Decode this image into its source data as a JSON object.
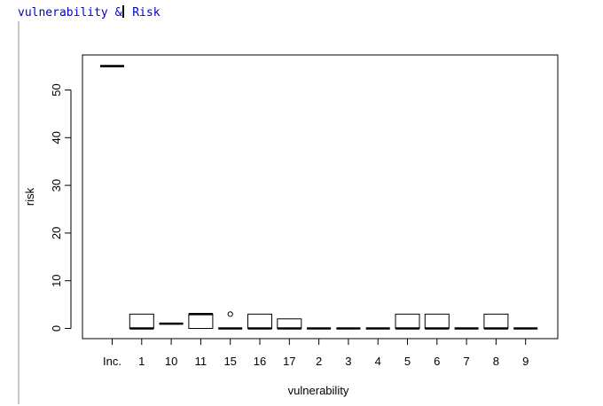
{
  "console": {
    "prefix": "vulnerability &",
    "suffix": " Risk"
  },
  "chart_data": {
    "type": "boxplot",
    "title": "",
    "xlabel": "vulnerability",
    "ylabel": "risk",
    "ylim": [
      -2,
      57
    ],
    "yticks": [
      0,
      10,
      20,
      30,
      40,
      50
    ],
    "categories": [
      "Inc.",
      "1",
      "10",
      "11",
      "15",
      "16",
      "17",
      "2",
      "3",
      "4",
      "5",
      "6",
      "7",
      "8",
      "9"
    ],
    "boxes": [
      {
        "category": "Inc.",
        "min": 55,
        "q1": 55,
        "median": 55,
        "q3": 55,
        "max": 55,
        "outliers": []
      },
      {
        "category": "1",
        "min": 0,
        "q1": 0,
        "median": 0,
        "q3": 3,
        "max": 3,
        "outliers": []
      },
      {
        "category": "10",
        "min": 1,
        "q1": 1,
        "median": 1,
        "q3": 1,
        "max": 1,
        "outliers": []
      },
      {
        "category": "11",
        "min": 0,
        "q1": 0,
        "median": 3,
        "q3": 3,
        "max": 3,
        "outliers": []
      },
      {
        "category": "15",
        "min": 0,
        "q1": 0,
        "median": 0,
        "q3": 0,
        "max": 0,
        "outliers": [
          3
        ]
      },
      {
        "category": "16",
        "min": 0,
        "q1": 0,
        "median": 0,
        "q3": 3,
        "max": 3,
        "outliers": []
      },
      {
        "category": "17",
        "min": 0,
        "q1": 0,
        "median": 0,
        "q3": 2,
        "max": 2,
        "outliers": []
      },
      {
        "category": "2",
        "min": 0,
        "q1": 0,
        "median": 0,
        "q3": 0,
        "max": 0,
        "outliers": []
      },
      {
        "category": "3",
        "min": 0,
        "q1": 0,
        "median": 0,
        "q3": 0,
        "max": 0,
        "outliers": []
      },
      {
        "category": "4",
        "min": 0,
        "q1": 0,
        "median": 0,
        "q3": 0,
        "max": 0,
        "outliers": []
      },
      {
        "category": "5",
        "min": 0,
        "q1": 0,
        "median": 0,
        "q3": 3,
        "max": 3,
        "outliers": []
      },
      {
        "category": "6",
        "min": 0,
        "q1": 0,
        "median": 0,
        "q3": 3,
        "max": 3,
        "outliers": []
      },
      {
        "category": "7",
        "min": 0,
        "q1": 0,
        "median": 0,
        "q3": 0,
        "max": 0,
        "outliers": []
      },
      {
        "category": "8",
        "min": 0,
        "q1": 0,
        "median": 0,
        "q3": 3,
        "max": 3,
        "outliers": []
      },
      {
        "category": "9",
        "min": 0,
        "q1": 0,
        "median": 0,
        "q3": 0,
        "max": 0,
        "outliers": []
      }
    ]
  }
}
